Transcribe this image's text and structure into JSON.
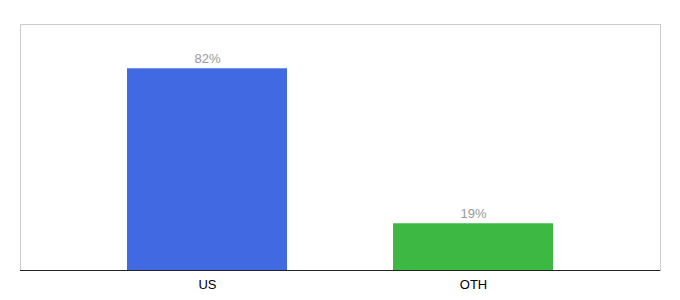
{
  "chart_data": {
    "type": "bar",
    "categories": [
      "US",
      "OTH"
    ],
    "values": [
      82,
      19
    ],
    "value_labels": [
      "82%",
      "19%"
    ],
    "colors": [
      "#4169E1",
      "#3CB843"
    ],
    "ylim": [
      0,
      100
    ],
    "data_labels": true,
    "tick_labels": "x"
  }
}
